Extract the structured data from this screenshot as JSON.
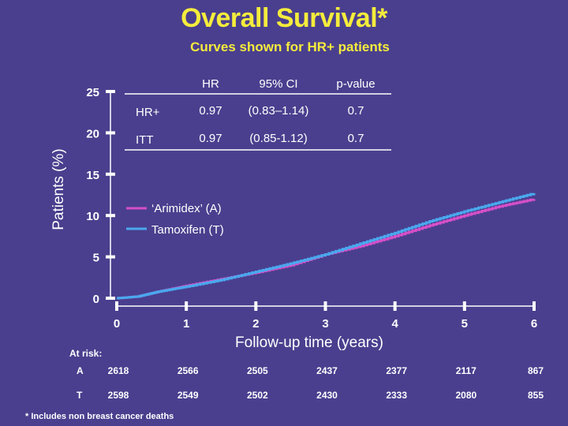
{
  "colors": {
    "background": "#4a3f8e",
    "title": "#f4ec3c",
    "arimidex": "#d64fc8",
    "tamoxifen": "#4aa8ee"
  },
  "title": "Overall Survival*",
  "subtitle": "Curves shown for HR+ patients",
  "footnote": "* Includes non breast cancer deaths",
  "hr_table": {
    "headers": [
      "HR",
      "95% CI",
      "p-value"
    ],
    "rows": [
      {
        "label": "HR+",
        "hr": "0.97",
        "ci": "(0.83–1.14)",
        "p": "0.7"
      },
      {
        "label": "ITT",
        "hr": "0.97",
        "ci": "(0.85-1.12)",
        "p": "0.7"
      }
    ]
  },
  "at_risk": {
    "label": "At risk:",
    "rows": [
      {
        "arm": "A",
        "values": [
          "2618",
          "2566",
          "2505",
          "2437",
          "2377",
          "2117",
          "867"
        ]
      },
      {
        "arm": "T",
        "values": [
          "2598",
          "2549",
          "2502",
          "2430",
          "2333",
          "2080",
          "855"
        ]
      }
    ]
  },
  "chart_data": {
    "type": "line",
    "title": "Overall Survival*",
    "subtitle": "Curves shown for HR+ patients",
    "xlabel": "Follow-up time (years)",
    "ylabel": "Patients (%)",
    "xlim": [
      0,
      6
    ],
    "ylim": [
      0,
      25
    ],
    "xticks": [
      0,
      1,
      2,
      3,
      4,
      5,
      6
    ],
    "yticks": [
      0,
      5,
      10,
      15,
      20,
      25
    ],
    "grid": false,
    "legend_position": "center-left",
    "series": [
      {
        "name": "‘Arimidex’ (A)",
        "color": "#d64fc8",
        "x": [
          0,
          0.3,
          0.6,
          1.0,
          1.5,
          2.0,
          2.5,
          3.0,
          3.5,
          4.0,
          4.5,
          5.0,
          5.5,
          6.0
        ],
        "y": [
          0,
          0.2,
          0.8,
          1.5,
          2.3,
          3.1,
          4.0,
          5.3,
          6.3,
          7.5,
          8.8,
          10.0,
          11.1,
          12.0
        ]
      },
      {
        "name": "Tamoxifen (T)",
        "color": "#4aa8ee",
        "x": [
          0,
          0.3,
          0.6,
          1.0,
          1.5,
          2.0,
          2.5,
          3.0,
          3.5,
          4.0,
          4.5,
          5.0,
          5.5,
          6.0
        ],
        "y": [
          0,
          0.2,
          0.8,
          1.4,
          2.2,
          3.2,
          4.2,
          5.3,
          6.6,
          7.9,
          9.3,
          10.5,
          11.6,
          12.7
        ]
      }
    ]
  }
}
